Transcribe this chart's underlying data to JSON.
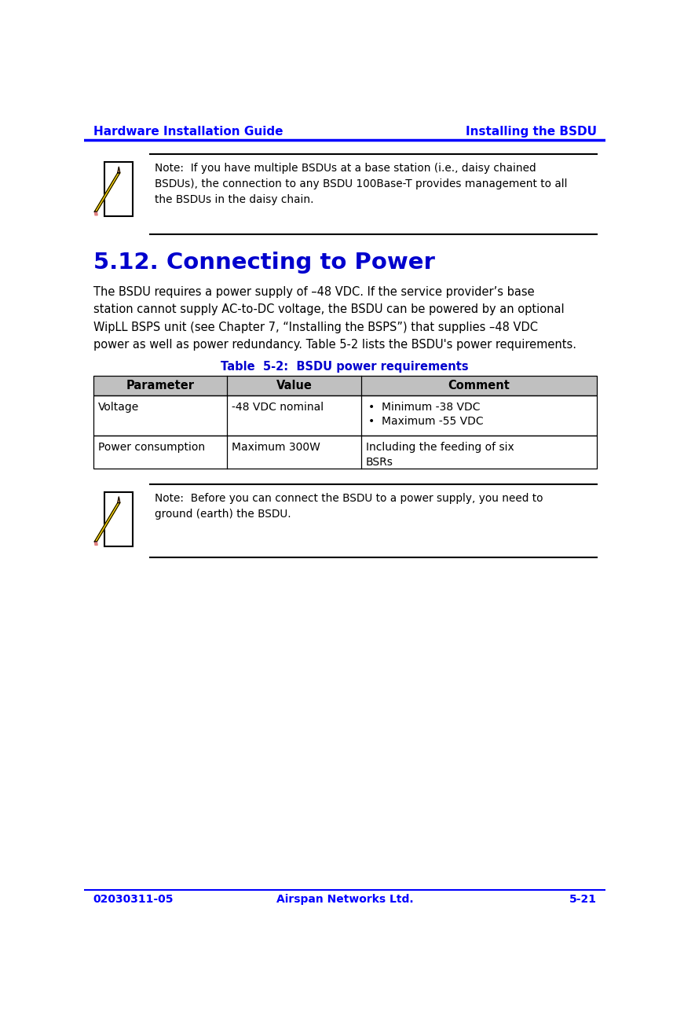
{
  "header_left": "Hardware Installation Guide",
  "header_right": "Installing the BSDU",
  "footer_left": "02030311-05",
  "footer_center": "Airspan Networks Ltd.",
  "footer_right": "5-21",
  "header_color": "#0000FF",
  "section_title": "5.12. Connecting to Power",
  "table_title": "Table  5-2:  BSDU power requirements",
  "table_headers": [
    "Parameter",
    "Value",
    "Comment"
  ],
  "table_row1_col1": "Voltage",
  "table_row1_col2": "-48 VDC nominal",
  "table_row1_col3_bullets": [
    "Minimum -38 VDC",
    "Maximum -55 VDC"
  ],
  "table_row2_col1": "Power consumption",
  "table_row2_col2": "Maximum 300W",
  "table_row2_col3": "Including the feeding of six\nBSRs",
  "note1_line1": "Note:  If you have multiple BSDUs at a base station (i.e., daisy chained",
  "note1_line2": "BSDUs), the connection to any BSDU 100Base-T provides management to all",
  "note1_line3": "the BSDUs in the daisy chain.",
  "note2_line1": "Note:  Before you can connect the BSDU to a power supply, you need to",
  "note2_line2": "ground (earth) the BSDU.",
  "body_line1": "The BSDU requires a power supply of –48 VDC. If the service provider’s base",
  "body_line2": "station cannot supply AC-to-DC voltage, the BSDU can be powered by an optional",
  "body_line3": "WipLL BSPS unit (see Chapter 7, “Installing the BSPS”) that supplies –48 VDC",
  "body_line4": "power as well as power redundancy. Table 5-2 lists the BSDU's power requirements.",
  "bg_color": "#FFFFFF",
  "text_color": "#000000",
  "table_header_bg": "#C0C0C0",
  "section_title_color": "#0000CD",
  "table_title_color": "#0000CD"
}
